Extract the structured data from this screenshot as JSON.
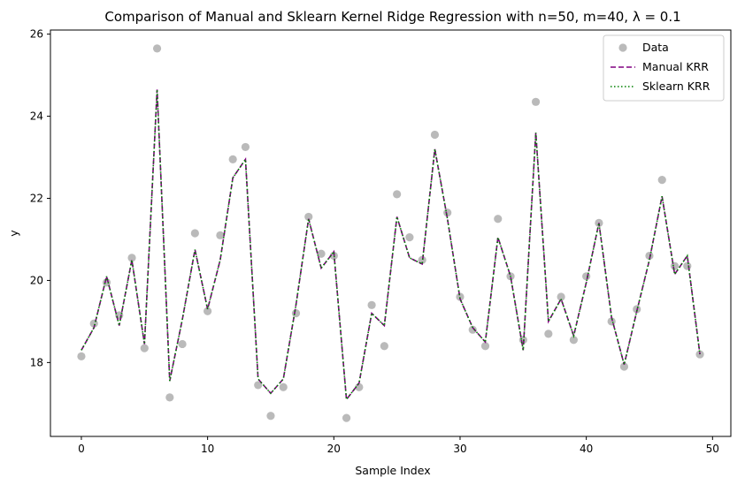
{
  "chart_data": {
    "type": "scatter",
    "title": "Comparison of Manual and Sklearn Kernel Ridge Regression with n=50, m=40, λ = 0.1",
    "xlabel": "Sample Index",
    "ylabel": "y",
    "xlim": [
      -2.45,
      51.45
    ],
    "ylim": [
      16.2,
      26.1
    ],
    "xticks": [
      0,
      10,
      20,
      30,
      40,
      50
    ],
    "yticks": [
      18,
      20,
      22,
      24,
      26
    ],
    "grid": false,
    "legend_position": "top-right",
    "x": [
      0,
      1,
      2,
      3,
      4,
      5,
      6,
      7,
      8,
      9,
      10,
      11,
      12,
      13,
      14,
      15,
      16,
      17,
      18,
      19,
      20,
      21,
      22,
      23,
      24,
      25,
      26,
      27,
      28,
      29,
      30,
      31,
      32,
      33,
      34,
      35,
      36,
      37,
      38,
      39,
      40,
      41,
      42,
      43,
      44,
      45,
      46,
      47,
      48,
      49
    ],
    "series": [
      {
        "name": "Data",
        "kind": "scatter",
        "color": "#a9a9a9",
        "values": [
          18.15,
          18.95,
          19.95,
          19.15,
          20.55,
          18.35,
          25.65,
          17.15,
          18.45,
          21.15,
          19.25,
          21.1,
          22.95,
          23.25,
          17.45,
          16.7,
          17.4,
          19.2,
          21.55,
          20.65,
          20.6,
          16.65,
          17.4,
          19.4,
          18.4,
          22.1,
          21.05,
          20.5,
          23.55,
          21.65,
          19.6,
          18.8,
          18.4,
          21.5,
          20.1,
          18.55,
          24.35,
          18.7,
          19.6,
          18.55,
          20.1,
          21.4,
          19.0,
          17.9,
          19.3,
          20.6,
          22.45,
          20.35,
          20.35,
          18.2
        ]
      },
      {
        "name": "Manual KRR",
        "kind": "line",
        "style": "dashed",
        "color": "#800080",
        "values": [
          18.3,
          18.85,
          20.1,
          18.9,
          20.5,
          18.45,
          24.65,
          17.55,
          19.05,
          20.75,
          19.3,
          20.5,
          22.5,
          22.95,
          17.6,
          17.25,
          17.6,
          19.4,
          21.5,
          20.3,
          20.7,
          17.1,
          17.5,
          19.2,
          18.9,
          21.55,
          20.55,
          20.4,
          23.2,
          21.5,
          19.55,
          18.85,
          18.5,
          21.05,
          20.1,
          18.3,
          23.6,
          19.0,
          19.55,
          18.65,
          19.95,
          21.4,
          19.1,
          17.95,
          19.25,
          20.5,
          22.05,
          20.15,
          20.6,
          18.2
        ]
      },
      {
        "name": "Sklearn KRR",
        "kind": "line",
        "style": "dotted",
        "color": "#008000",
        "values": [
          18.3,
          18.85,
          20.1,
          18.9,
          20.5,
          18.45,
          24.65,
          17.55,
          19.05,
          20.75,
          19.3,
          20.5,
          22.5,
          22.95,
          17.6,
          17.25,
          17.6,
          19.4,
          21.5,
          20.3,
          20.7,
          17.1,
          17.5,
          19.2,
          18.9,
          21.55,
          20.55,
          20.4,
          23.2,
          21.5,
          19.55,
          18.85,
          18.5,
          21.05,
          20.1,
          18.3,
          23.6,
          19.0,
          19.55,
          18.65,
          19.95,
          21.4,
          19.1,
          17.95,
          19.25,
          20.5,
          22.05,
          20.15,
          20.6,
          18.2
        ]
      }
    ]
  }
}
